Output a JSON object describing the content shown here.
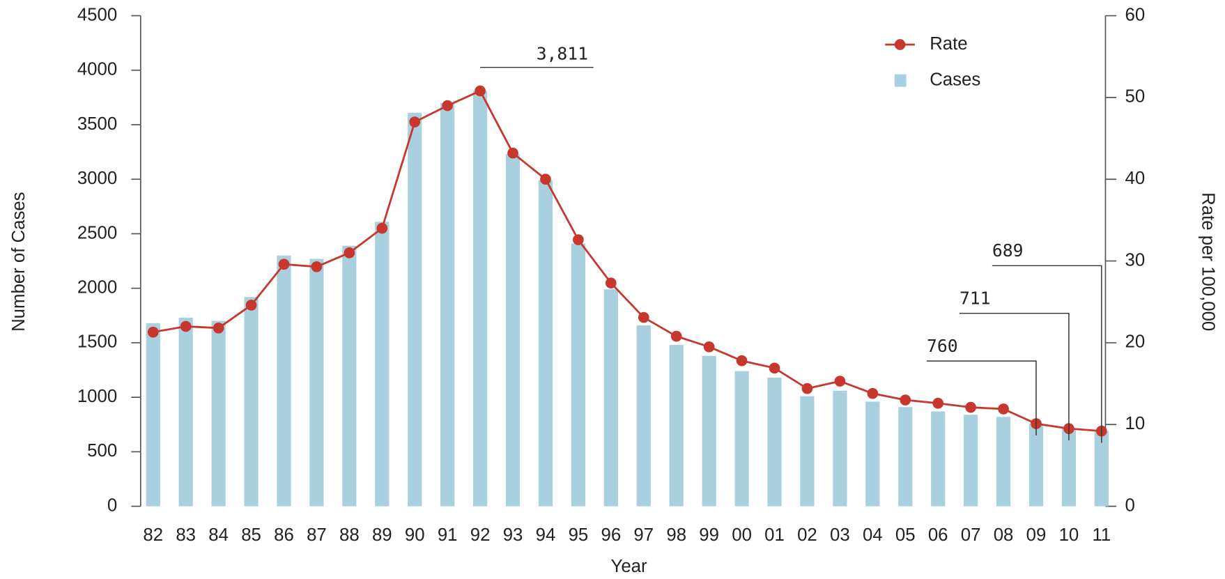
{
  "chart_data": {
    "type": "bar",
    "x_label": "Year",
    "y_label": "Number of Cases",
    "y2_label": "Rate per 100,000",
    "categories": [
      "82",
      "83",
      "84",
      "85",
      "86",
      "87",
      "88",
      "89",
      "90",
      "91",
      "92",
      "93",
      "94",
      "95",
      "96",
      "97",
      "98",
      "99",
      "00",
      "01",
      "02",
      "03",
      "04",
      "05",
      "06",
      "07",
      "08",
      "09",
      "10",
      "11"
    ],
    "series": [
      {
        "name": "Rate",
        "type": "line",
        "axis": "y2",
        "color": "#c8372d",
        "values": [
          21.3,
          22,
          21.8,
          24.6,
          29.6,
          29.3,
          31,
          34,
          47,
          49,
          50.8,
          43.2,
          40,
          32.6,
          27.3,
          23.1,
          20.8,
          19.5,
          17.8,
          16.9,
          14.4,
          15.3,
          13.8,
          13,
          12.6,
          12.1,
          11.9,
          10.1,
          9.5,
          9.2
        ]
      },
      {
        "name": "Cases",
        "type": "bar",
        "color": "#a9d0de",
        "values": [
          1680,
          1730,
          1700,
          1920,
          2300,
          2270,
          2390,
          2610,
          3610,
          3700,
          3811,
          3230,
          2990,
          2410,
          1990,
          1660,
          1480,
          1380,
          1240,
          1180,
          1010,
          1060,
          960,
          910,
          870,
          840,
          820,
          760,
          711,
          689
        ],
        "value_labels": [
          null,
          null,
          null,
          null,
          null,
          null,
          null,
          null,
          null,
          null,
          "3,811",
          null,
          null,
          null,
          null,
          null,
          null,
          null,
          null,
          null,
          null,
          null,
          null,
          null,
          null,
          null,
          null,
          "760",
          "711",
          "689"
        ]
      }
    ],
    "ylim": [
      0,
      4500
    ],
    "yticks": [
      0,
      500,
      1000,
      1500,
      2000,
      2500,
      3000,
      3500,
      4000,
      4500
    ],
    "y2lim": [
      0,
      60
    ],
    "y2ticks": [
      0,
      10,
      20,
      30,
      40,
      50,
      60
    ],
    "legend": "top right"
  }
}
